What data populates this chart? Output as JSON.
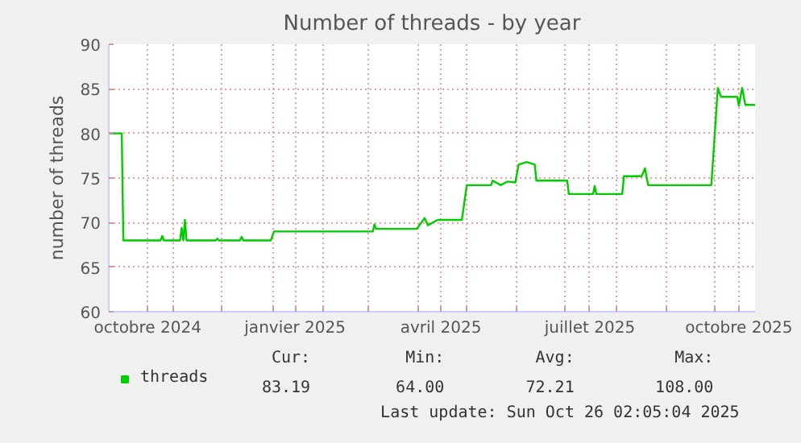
{
  "chart_data": {
    "type": "line",
    "title": "Number of threads - by year",
    "ylabel": "number of threads",
    "xlim": [
      "2024-09-22",
      "2025-10-26"
    ],
    "ylim": [
      60,
      90
    ],
    "yticks": [
      60,
      65,
      70,
      75,
      80,
      85,
      90
    ],
    "xticks": [
      {
        "value": "2024-10-16",
        "label": "octobre 2024"
      },
      {
        "value": "2025-01-15",
        "label": "janvier 2025"
      },
      {
        "value": "2025-04-15",
        "label": "avril 2025"
      },
      {
        "value": "2025-07-16",
        "label": "juillet 2025"
      },
      {
        "value": "2025-10-16",
        "label": "octobre 2025"
      },
      {
        "value": "2024-11-01",
        "label": null
      },
      {
        "value": "2024-12-01",
        "label": null
      },
      {
        "value": "2025-01-01",
        "label": null
      },
      {
        "value": "2025-02-01",
        "label": null
      },
      {
        "value": "2025-03-01",
        "label": null
      },
      {
        "value": "2025-04-01",
        "label": null
      },
      {
        "value": "2025-05-01",
        "label": null
      },
      {
        "value": "2025-06-01",
        "label": null
      },
      {
        "value": "2025-07-01",
        "label": null
      },
      {
        "value": "2025-08-01",
        "label": null
      },
      {
        "value": "2025-09-01",
        "label": null
      },
      {
        "value": "2025-10-01",
        "label": null
      }
    ],
    "grid": true,
    "legend": "bottom",
    "series": [
      {
        "name": "threads",
        "color": "#00cc00",
        "x": [
          "2024-09-22",
          "2024-09-30",
          "2024-10-01",
          "2024-10-02",
          "2024-10-24",
          "2024-10-25",
          "2024-10-26",
          "2024-11-05",
          "2024-11-06",
          "2024-11-07",
          "2024-11-08",
          "2024-11-09",
          "2024-11-27",
          "2024-11-28",
          "2024-11-29",
          "2024-12-12",
          "2024-12-13",
          "2024-12-14",
          "2024-12-31",
          "2025-01-02",
          "2025-03-04",
          "2025-03-05",
          "2025-03-06",
          "2025-03-31",
          "2025-04-01",
          "2025-04-05",
          "2025-04-07",
          "2025-04-13",
          "2025-04-28",
          "2025-05-01",
          "2025-05-16",
          "2025-05-17",
          "2025-05-22",
          "2025-05-26",
          "2025-05-31",
          "2025-06-02",
          "2025-06-07",
          "2025-06-12",
          "2025-06-13",
          "2025-07-02",
          "2025-07-03",
          "2025-07-18",
          "2025-07-19",
          "2025-07-20",
          "2025-08-05",
          "2025-08-06",
          "2025-08-17",
          "2025-08-19",
          "2025-08-21",
          "2025-09-29",
          "2025-10-03",
          "2025-10-05",
          "2025-10-15",
          "2025-10-16",
          "2025-10-17",
          "2025-10-18",
          "2025-10-20",
          "2025-10-26"
        ],
        "values": [
          80,
          80,
          68,
          68,
          68,
          68.5,
          68,
          68,
          69.4,
          68,
          70.3,
          68,
          68,
          68.2,
          68,
          68,
          68.4,
          68,
          68,
          69,
          69,
          69.8,
          69.3,
          69.3,
          69.5,
          70.5,
          69.7,
          70.3,
          70.3,
          74.2,
          74.2,
          74.7,
          74.2,
          74.6,
          74.5,
          76.5,
          76.8,
          76.5,
          74.7,
          74.7,
          73.2,
          73.2,
          74.1,
          73.2,
          73.2,
          75.2,
          75.2,
          76.1,
          74.2,
          74.2,
          85.1,
          84.1,
          84.1,
          83.1,
          84.1,
          85.1,
          83.2,
          83.2
        ]
      }
    ],
    "annotations": [
      "Cur:",
      "Min:",
      "Avg:",
      "Max:",
      "83.19",
      "64.00",
      "72.21",
      "108.00",
      "Last update: Sun Oct 26 02:05:04 2025"
    ]
  }
}
